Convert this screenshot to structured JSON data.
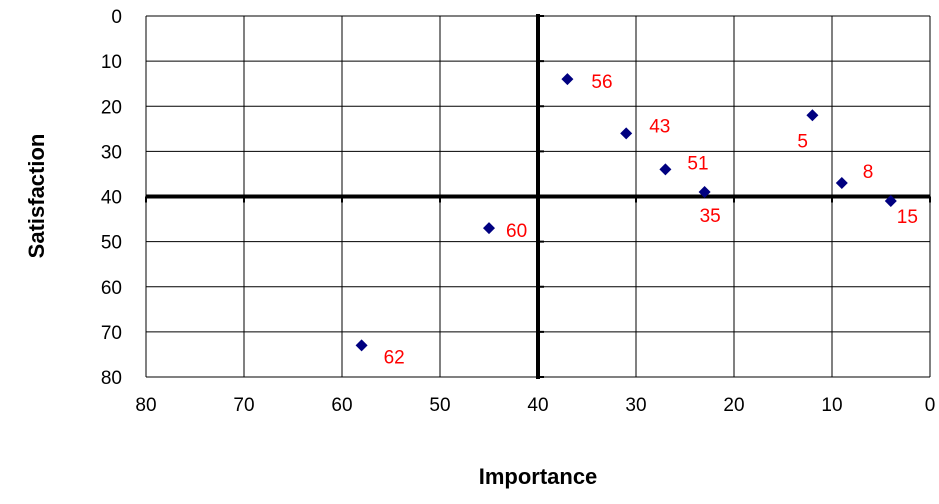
{
  "chart_data": {
    "type": "scatter",
    "xlabel": "Importance",
    "ylabel": "Satisfaction",
    "xlim": [
      80,
      0
    ],
    "ylim": [
      80,
      0
    ],
    "x_reversed": true,
    "y_reversed": true,
    "x_ticks": [
      "80",
      "70",
      "60",
      "50",
      "40",
      "30",
      "20",
      "10",
      "0"
    ],
    "y_ticks": [
      "0",
      "10",
      "20",
      "30",
      "40",
      "50",
      "60",
      "70",
      "80"
    ],
    "grid": true,
    "quadrant_lines": {
      "x": 40,
      "y": 40
    },
    "points": [
      {
        "x": 37,
        "y": 14,
        "label": "56"
      },
      {
        "x": 31,
        "y": 26,
        "label": "43"
      },
      {
        "x": 27,
        "y": 34,
        "label": "51"
      },
      {
        "x": 23,
        "y": 39,
        "label": "35"
      },
      {
        "x": 12,
        "y": 22,
        "label": "5"
      },
      {
        "x": 9,
        "y": 37,
        "label": "8"
      },
      {
        "x": 4,
        "y": 41,
        "label": "15"
      },
      {
        "x": 45,
        "y": 47,
        "label": "60"
      },
      {
        "x": 58,
        "y": 73,
        "label": "62"
      }
    ],
    "colors": {
      "marker": "#000080",
      "label": "#ff0000",
      "grid": "#000000",
      "axis": "#000000"
    }
  }
}
